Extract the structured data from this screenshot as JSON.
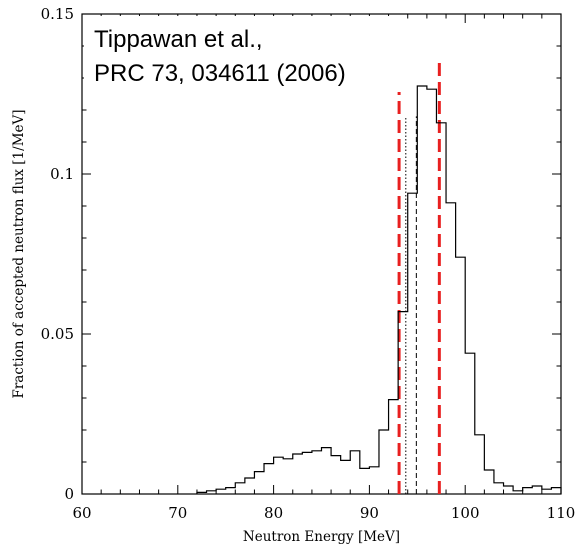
{
  "chart_data": {
    "type": "line",
    "style": "step-histogram",
    "title": "",
    "xlabel": "Neutron Energy [MeV]",
    "ylabel": "Fraction of accepted neutron flux [1/MeV]",
    "xlim": [
      60,
      110
    ],
    "ylim": [
      0,
      0.15
    ],
    "x_ticks": [
      60,
      70,
      80,
      90,
      100,
      110
    ],
    "x_tick_labels": [
      "60",
      "70",
      "80",
      "90",
      "100",
      "110"
    ],
    "y_ticks": [
      0,
      0.05,
      0.1,
      0.15
    ],
    "y_tick_labels": [
      "0",
      "0.05",
      "0.1",
      "0.15"
    ],
    "grid": false,
    "legend": "none",
    "bin_width": 1,
    "bin_starts": [
      72,
      73,
      74,
      75,
      76,
      77,
      78,
      79,
      80,
      81,
      82,
      83,
      84,
      85,
      86,
      87,
      88,
      89,
      90,
      91,
      92,
      93,
      94,
      95,
      96,
      97,
      98,
      99,
      100,
      101,
      102,
      103,
      104,
      105,
      106,
      107,
      108,
      109
    ],
    "values": [
      0.0005,
      0.001,
      0.0015,
      0.002,
      0.0035,
      0.005,
      0.007,
      0.0095,
      0.0115,
      0.011,
      0.0125,
      0.013,
      0.0135,
      0.0145,
      0.012,
      0.0105,
      0.0135,
      0.008,
      0.0085,
      0.02,
      0.0295,
      0.057,
      0.094,
      0.1275,
      0.1265,
      0.116,
      0.091,
      0.074,
      0.044,
      0.0185,
      0.0075,
      0.0035,
      0.0025,
      0.001,
      0.002,
      0.0025,
      0.0015,
      0.002
    ],
    "vertical_lines": [
      {
        "x": 93.1,
        "color": "#e82020",
        "dash": "long"
      },
      {
        "x": 97.3,
        "color": "#e82020",
        "dash": "long"
      },
      {
        "x": 93.8,
        "color": "#000000",
        "dash": "dotted"
      },
      {
        "x": 94.9,
        "color": "#000000",
        "dash": "short"
      }
    ],
    "annotation": [
      "Tippawan et al.,",
      "PRC 73, 034611 (2006)"
    ]
  }
}
